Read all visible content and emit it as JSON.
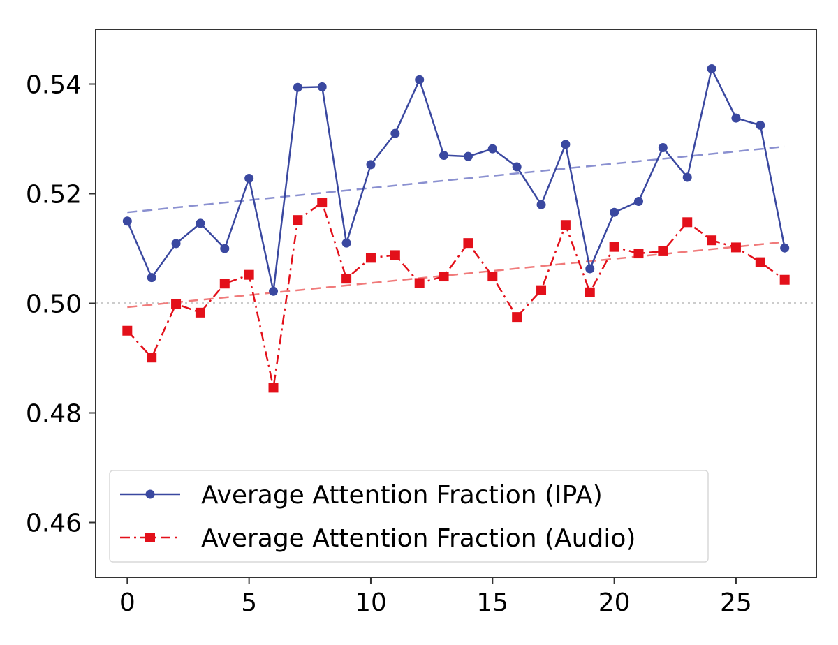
{
  "chart_data": {
    "type": "line",
    "title": "",
    "xlabel": "",
    "ylabel": "",
    "xlim": [
      -1.3,
      28.3
    ],
    "ylim": [
      0.45,
      0.55
    ],
    "xticks": [
      0,
      5,
      10,
      15,
      20,
      25
    ],
    "yticks": [
      0.46,
      0.48,
      0.5,
      0.52,
      0.54
    ],
    "xtick_labels": [
      "0",
      "5",
      "10",
      "15",
      "20",
      "25"
    ],
    "ytick_labels": [
      "0.46",
      "0.48",
      "0.50",
      "0.52",
      "0.54"
    ],
    "grid": false,
    "legend_position": "lower-left",
    "x": [
      0,
      1,
      2,
      3,
      4,
      5,
      6,
      7,
      8,
      9,
      10,
      11,
      12,
      13,
      14,
      15,
      16,
      17,
      18,
      19,
      20,
      21,
      22,
      23,
      24,
      25,
      26,
      27
    ],
    "series": [
      {
        "name": "Average Attention Fraction (IPA)",
        "color": "#3a48a0",
        "line_style": "solid",
        "marker": "circle",
        "values": [
          0.515,
          0.5047,
          0.5109,
          0.5146,
          0.51,
          0.5228,
          0.5022,
          0.5394,
          0.5395,
          0.511,
          0.5253,
          0.531,
          0.5408,
          0.527,
          0.5268,
          0.5282,
          0.5249,
          0.518,
          0.529,
          0.5063,
          0.5166,
          0.5186,
          0.5284,
          0.523,
          0.5428,
          0.5338,
          0.5325,
          0.5101
        ],
        "trend": {
          "color": "#8a90d0",
          "line_style": "dashed",
          "x": [
            0,
            27
          ],
          "y": [
            0.5166,
            0.5286
          ]
        }
      },
      {
        "name": "Average Attention Fraction (Audio)",
        "color": "#e3101a",
        "line_style": "dashdot",
        "marker": "square",
        "values": [
          0.495,
          0.4901,
          0.4999,
          0.4983,
          0.5036,
          0.5052,
          0.4846,
          0.5152,
          0.5184,
          0.5045,
          0.5083,
          0.5088,
          0.5037,
          0.5049,
          0.511,
          0.5049,
          0.4975,
          0.5024,
          0.5143,
          0.502,
          0.5103,
          0.5091,
          0.5095,
          0.5148,
          0.5115,
          0.5102,
          0.5075,
          0.5043
        ],
        "trend": {
          "color": "#f07a7a",
          "line_style": "dashed",
          "x": [
            0,
            27
          ],
          "y": [
            0.4993,
            0.5112
          ]
        }
      }
    ],
    "reference_line": {
      "y": 0.5,
      "color": "#cccccc",
      "line_style": "dotted"
    }
  }
}
